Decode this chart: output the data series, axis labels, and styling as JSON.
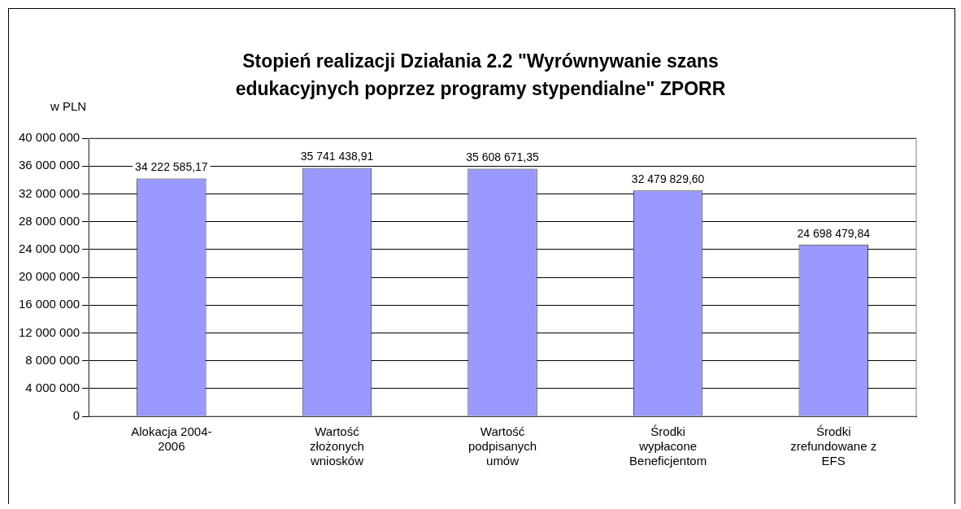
{
  "chart_data": {
    "type": "bar",
    "title": "Stopień realizacji Działania 2.2 \"Wyrównywanie szans\nedukacyjnych poprzez programy stypendialne\" ZPORR",
    "ylabel": "w PLN",
    "categories": [
      "Alokacja 2004-\n2006",
      "Wartość\nzłożonych\nwniosków",
      "Wartość\npodpisanych\numów",
      "Środki\nwypłacone\nBeneficjentom",
      "Środki\nzrefundowane z\nEFS"
    ],
    "values": [
      34222585.17,
      35741438.91,
      35608671.35,
      32479829.6,
      24698479.84
    ],
    "value_labels": [
      "34 222 585,17",
      "35 741 438,91",
      "35 608 671,35",
      "32 479 829,60",
      "24 698 479,84"
    ],
    "color": "#9999ff",
    "ylim": [
      0,
      40000000
    ],
    "yticks": [
      {
        "value": 0,
        "label": "0"
      },
      {
        "value": 4000000,
        "label": "4 000 000"
      },
      {
        "value": 8000000,
        "label": "8 000 000"
      },
      {
        "value": 12000000,
        "label": "12 000 000"
      },
      {
        "value": 16000000,
        "label": "16 000 000"
      },
      {
        "value": 20000000,
        "label": "20 000 000"
      },
      {
        "value": 24000000,
        "label": "24 000 000"
      },
      {
        "value": 28000000,
        "label": "28 000 000"
      },
      {
        "value": 32000000,
        "label": "32 000 000"
      },
      {
        "value": 36000000,
        "label": "36 000 000"
      },
      {
        "value": 40000000,
        "label": "40 000 000"
      }
    ],
    "grid": "y",
    "legend": false
  }
}
